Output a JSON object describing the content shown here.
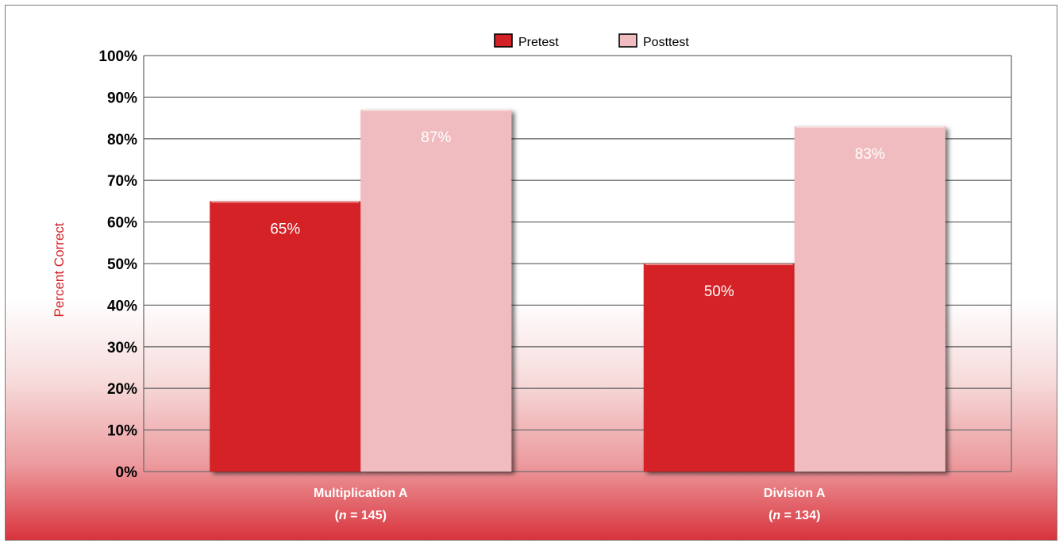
{
  "chart_data": {
    "type": "bar",
    "title": "",
    "xlabel": "",
    "ylabel": "Percent Correct",
    "ylim": [
      0,
      100
    ],
    "yticks": [
      "0%",
      "10%",
      "20%",
      "30%",
      "40%",
      "50%",
      "60%",
      "70%",
      "80%",
      "90%",
      "100%"
    ],
    "grid": true,
    "legend_position": "top-center",
    "categories": [
      {
        "name": "Multiplication A",
        "n_prefix": "(",
        "n_symbol": "n",
        "n_text": " = 145)"
      },
      {
        "name": "Division A",
        "n_prefix": "(",
        "n_symbol": "n",
        "n_text": " = 134)"
      }
    ],
    "series": [
      {
        "name": "Pretest",
        "color": "#d42027",
        "values": [
          65,
          50
        ],
        "labels": [
          "65%",
          "50%"
        ]
      },
      {
        "name": "Posttest",
        "color": "#f0bcbf",
        "values": [
          87,
          83
        ],
        "labels": [
          "87%",
          "83%"
        ]
      }
    ]
  }
}
